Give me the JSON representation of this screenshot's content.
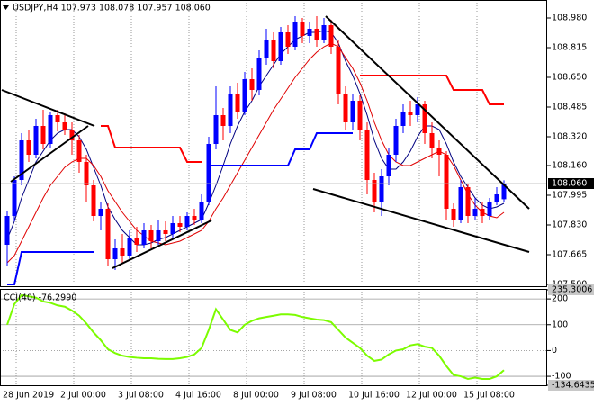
{
  "chart_data": [
    {
      "type": "candlestick",
      "title": "USDJPY,H4  107.973 108.078 107.957 108.060",
      "categories": [
        "28 Jun 2019",
        null,
        null,
        null,
        null,
        null,
        null,
        null,
        "2 Jul 00:00",
        null,
        null,
        null,
        null,
        null,
        null,
        null,
        "3 Jul 08:00",
        null,
        null,
        null,
        null,
        null,
        null,
        null,
        "4 Jul 16:00",
        null,
        null,
        null,
        null,
        null,
        null,
        null,
        "8 Jul 00:00",
        null,
        null,
        null,
        null,
        null,
        null,
        null,
        "9 Jul 08:00",
        null,
        null,
        null,
        null,
        null,
        null,
        null,
        "10 Jul 16:00",
        null,
        null,
        null,
        null,
        null,
        null,
        null,
        "12 Jul 00:00",
        null,
        null,
        null,
        null,
        null,
        null,
        null,
        "15 Jul 08:00",
        null,
        null,
        null,
        null,
        null
      ],
      "open": [
        107.72,
        107.88,
        108.08,
        108.3,
        108.22,
        108.38,
        108.28,
        108.44,
        108.4,
        108.36,
        108.3,
        108.18,
        108.05,
        107.88,
        107.92,
        107.64,
        107.7,
        107.66,
        107.76,
        107.72,
        107.8,
        107.74,
        107.8,
        107.78,
        107.84,
        107.82,
        107.88,
        107.86,
        107.96,
        108.28,
        108.44,
        108.38,
        108.56,
        108.46,
        108.64,
        108.58,
        108.76,
        108.86,
        108.74,
        108.9,
        108.82,
        108.96,
        108.88,
        108.92,
        108.86,
        108.94,
        108.82,
        108.56,
        108.4,
        108.52,
        108.36,
        108.08,
        107.96,
        108.1,
        108.22,
        108.38,
        108.46,
        108.44,
        108.5,
        108.34,
        108.26,
        108.22,
        107.92,
        107.86,
        108.04,
        107.88,
        107.92,
        107.88,
        107.96,
        107.973
      ],
      "high": [
        107.91,
        108.1,
        108.34,
        108.36,
        108.42,
        108.47,
        108.46,
        108.47,
        108.45,
        108.4,
        108.33,
        108.22,
        108.08,
        107.96,
        107.95,
        107.75,
        107.78,
        107.8,
        107.82,
        107.84,
        107.83,
        107.86,
        107.85,
        107.88,
        107.88,
        107.9,
        107.92,
        108.0,
        108.32,
        108.6,
        108.48,
        108.6,
        108.62,
        108.68,
        108.7,
        108.8,
        108.92,
        108.9,
        108.93,
        108.94,
        108.99,
        108.98,
        108.96,
        108.99,
        108.98,
        108.97,
        108.86,
        108.6,
        108.56,
        108.55,
        108.4,
        108.12,
        108.14,
        108.26,
        108.42,
        108.5,
        108.52,
        108.54,
        108.52,
        108.4,
        108.3,
        108.24,
        107.95,
        108.08,
        108.06,
        107.98,
        107.96,
        107.98,
        108.04,
        108.078
      ],
      "low": [
        107.6,
        107.85,
        108.05,
        108.18,
        108.2,
        108.25,
        108.26,
        108.35,
        108.33,
        108.22,
        108.12,
        107.96,
        107.85,
        107.8,
        107.6,
        107.58,
        107.62,
        107.63,
        107.68,
        107.7,
        107.7,
        107.72,
        107.74,
        107.76,
        107.79,
        107.8,
        107.83,
        107.84,
        107.94,
        108.25,
        108.3,
        108.34,
        108.42,
        108.44,
        108.52,
        108.55,
        108.72,
        108.7,
        108.72,
        108.78,
        108.8,
        108.84,
        108.84,
        108.82,
        108.84,
        108.78,
        108.5,
        108.36,
        108.36,
        108.3,
        108.0,
        107.9,
        107.88,
        108.05,
        108.18,
        108.34,
        108.38,
        108.4,
        108.28,
        108.2,
        108.1,
        107.86,
        107.82,
        107.84,
        107.84,
        107.86,
        107.84,
        107.86,
        107.94,
        107.957
      ],
      "close": [
        107.88,
        108.08,
        108.3,
        108.22,
        108.38,
        108.28,
        108.44,
        108.4,
        108.36,
        108.3,
        108.18,
        108.05,
        107.88,
        107.92,
        107.64,
        107.7,
        107.66,
        107.76,
        107.72,
        107.8,
        107.74,
        107.8,
        107.78,
        107.84,
        107.82,
        107.88,
        107.86,
        107.96,
        108.28,
        108.44,
        108.38,
        108.56,
        108.46,
        108.64,
        108.58,
        108.76,
        108.86,
        108.74,
        108.9,
        108.82,
        108.96,
        108.88,
        108.92,
        108.86,
        108.94,
        108.82,
        108.56,
        108.4,
        108.52,
        108.36,
        108.08,
        107.96,
        108.1,
        108.22,
        108.38,
        108.46,
        108.44,
        108.5,
        108.34,
        108.26,
        108.22,
        107.92,
        107.86,
        108.04,
        107.88,
        107.92,
        107.88,
        107.96,
        108.0,
        108.06
      ],
      "up_color": "#0000ff",
      "down_color": "#ff0000",
      "series": [
        {
          "color": "#000080",
          "line_width": 1,
          "values": [
            107.75,
            107.85,
            107.98,
            108.08,
            108.18,
            108.24,
            108.3,
            108.34,
            108.36,
            108.36,
            108.32,
            108.25,
            108.15,
            108.05,
            107.93,
            107.86,
            107.8,
            107.76,
            107.72,
            107.72,
            107.73,
            107.75,
            107.76,
            107.78,
            107.8,
            107.82,
            107.84,
            107.86,
            107.95,
            108.05,
            108.16,
            108.28,
            108.38,
            108.46,
            108.52,
            108.6,
            108.66,
            108.72,
            108.78,
            108.82,
            108.86,
            108.88,
            108.9,
            108.9,
            108.91,
            108.9,
            108.84,
            108.74,
            108.66,
            108.56,
            108.44,
            108.3,
            108.2,
            108.14,
            108.14,
            108.18,
            108.24,
            108.32,
            108.38,
            108.38,
            108.36,
            108.28,
            108.18,
            108.1,
            108.04,
            107.98,
            107.94,
            107.92,
            107.93,
            107.95
          ]
        },
        {
          "color": "#e00000",
          "line_width": 1,
          "values": [
            107.62,
            107.66,
            107.74,
            107.82,
            107.9,
            107.98,
            108.05,
            108.1,
            108.15,
            108.18,
            108.2,
            108.2,
            108.16,
            108.1,
            108.02,
            107.96,
            107.9,
            107.85,
            107.8,
            107.77,
            107.74,
            107.73,
            107.72,
            107.73,
            107.74,
            107.76,
            107.78,
            107.8,
            107.85,
            107.92,
            107.98,
            108.05,
            108.12,
            108.19,
            108.26,
            108.33,
            108.4,
            108.47,
            108.53,
            108.59,
            108.65,
            108.7,
            108.75,
            108.79,
            108.82,
            108.84,
            108.82,
            108.76,
            108.7,
            108.62,
            108.52,
            108.4,
            108.3,
            108.22,
            108.18,
            108.16,
            108.16,
            108.18,
            108.2,
            108.22,
            108.24,
            108.22,
            108.16,
            108.08,
            108.0,
            107.94,
            107.9,
            107.88,
            107.87,
            107.9
          ]
        },
        {
          "color": "#ff0000",
          "line_width": 2,
          "values": [
            null,
            null,
            null,
            null,
            null,
            null,
            null,
            null,
            null,
            null,
            null,
            null,
            null,
            108.38,
            108.38,
            108.26,
            108.26,
            108.26,
            108.26,
            108.26,
            108.26,
            108.26,
            108.26,
            108.26,
            108.26,
            108.18,
            108.18,
            108.18,
            null,
            null,
            null,
            null,
            null,
            null,
            null,
            null,
            null,
            null,
            null,
            null,
            null,
            null,
            null,
            null,
            null,
            null,
            null,
            null,
            null,
            108.66,
            108.66,
            108.66,
            108.66,
            108.66,
            108.66,
            108.66,
            108.66,
            108.66,
            108.66,
            108.66,
            108.66,
            108.66,
            108.58,
            108.58,
            108.58,
            108.58,
            108.58,
            108.5,
            108.5,
            108.5
          ]
        },
        {
          "color": "#0000ff",
          "line_width": 2,
          "values": [
            107.5,
            107.5,
            107.68,
            107.68,
            107.68,
            107.68,
            107.68,
            107.68,
            107.68,
            107.68,
            107.68,
            107.68,
            107.68,
            null,
            null,
            null,
            null,
            null,
            null,
            null,
            null,
            null,
            null,
            null,
            null,
            null,
            null,
            null,
            108.16,
            108.16,
            108.16,
            108.16,
            108.16,
            108.16,
            108.16,
            108.16,
            108.16,
            108.16,
            108.16,
            108.16,
            108.25,
            108.25,
            108.25,
            108.34,
            108.34,
            108.34,
            108.34,
            108.34,
            108.34,
            null,
            null,
            null,
            null,
            null,
            null,
            null,
            null,
            null,
            null,
            null,
            null,
            null,
            null,
            null,
            null,
            null,
            null,
            null,
            null,
            null
          ]
        }
      ],
      "ylim": [
        107.49,
        109.08
      ],
      "yticks": [
        {
          "value": 108.98,
          "label": "108.980"
        },
        {
          "value": 108.815,
          "label": "108.815"
        },
        {
          "value": 108.65,
          "label": "108.650"
        },
        {
          "value": 108.485,
          "label": "108.485"
        },
        {
          "value": 108.32,
          "label": "108.320"
        },
        {
          "value": 108.16,
          "label": "108.160"
        },
        {
          "value": 107.995,
          "label": "107.995"
        },
        {
          "value": 107.83,
          "label": "107.830"
        },
        {
          "value": 107.665,
          "label": "107.665"
        },
        {
          "value": 107.5,
          "label": "107.500"
        }
      ],
      "last_price": {
        "value": 108.06,
        "label": "108.060"
      }
    },
    {
      "type": "line",
      "title": "CCI(40) -76.2990",
      "series": [
        {
          "color": "#7cfc00",
          "line_width": 2,
          "values": [
            100,
            180,
            215,
            210,
            205,
            190,
            185,
            175,
            170,
            155,
            135,
            105,
            70,
            40,
            5,
            -10,
            -20,
            -25,
            -28,
            -30,
            -30,
            -32,
            -33,
            -33,
            -30,
            -25,
            -15,
            10,
            80,
            160,
            120,
            80,
            70,
            100,
            115,
            125,
            130,
            135,
            140,
            140,
            138,
            130,
            125,
            120,
            118,
            110,
            80,
            50,
            30,
            10,
            -20,
            -40,
            -35,
            -15,
            0,
            5,
            20,
            25,
            15,
            10,
            -20,
            -60,
            -95,
            -100,
            -110,
            -105,
            -110,
            -110,
            -100,
            -76.299
          ]
        }
      ],
      "ylim": [
        -134.6435,
        235.3006
      ],
      "yticks": [
        235.3006,
        200,
        100,
        0,
        -100,
        -134.6435
      ],
      "grid": true
    }
  ]
}
